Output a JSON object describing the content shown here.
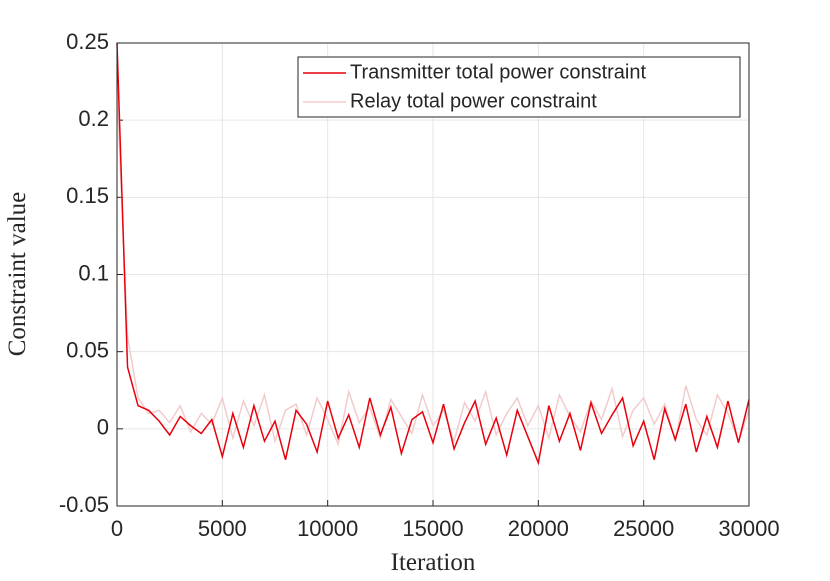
{
  "chart_data": {
    "type": "line",
    "xlabel": "Iteration",
    "ylabel": "Constraint value",
    "x": [
      0,
      500,
      1000,
      1500,
      2000,
      2500,
      3000,
      3500,
      4000,
      4500,
      5000,
      5500,
      6000,
      6500,
      7000,
      7500,
      8000,
      8500,
      9000,
      9500,
      10000,
      10500,
      11000,
      11500,
      12000,
      12500,
      13000,
      13500,
      14000,
      14500,
      15000,
      15500,
      16000,
      16500,
      17000,
      17500,
      18000,
      18500,
      19000,
      19500,
      20000,
      20500,
      21000,
      21500,
      22000,
      22500,
      23000,
      23500,
      24000,
      24500,
      25000,
      25500,
      26000,
      26500,
      27000,
      27500,
      28000,
      28500,
      29000,
      29500,
      30000
    ],
    "series": [
      {
        "name": "Transmitter total power constraint",
        "color": "#e8000b",
        "values": [
          0.25,
          0.04,
          0.015,
          0.012,
          0.005,
          -0.004,
          0.008,
          0.002,
          -0.003,
          0.006,
          -0.018,
          0.01,
          -0.012,
          0.015,
          -0.008,
          0.005,
          -0.02,
          0.012,
          0.003,
          -0.015,
          0.018,
          -0.006,
          0.009,
          -0.012,
          0.02,
          -0.004,
          0.014,
          -0.016,
          0.006,
          0.011,
          -0.009,
          0.016,
          -0.013,
          0.004,
          0.018,
          -0.01,
          0.007,
          -0.017,
          0.012,
          -0.005,
          -0.022,
          0.015,
          -0.008,
          0.01,
          -0.014,
          0.017,
          -0.003,
          0.009,
          0.02,
          -0.011,
          0.005,
          -0.02,
          0.013,
          -0.007,
          0.016,
          -0.015,
          0.008,
          -0.012,
          0.018,
          -0.009,
          0.019
        ]
      },
      {
        "name": "Relay total power constraint",
        "color": "#f2cccc",
        "values": [
          0.22,
          0.06,
          0.02,
          0.01,
          0.012,
          0.004,
          0.015,
          -0.002,
          0.01,
          0.003,
          0.02,
          -0.006,
          0.018,
          0.002,
          0.022,
          -0.008,
          0.012,
          0.016,
          -0.004,
          0.02,
          0.006,
          -0.01,
          0.024,
          0.004,
          0.014,
          -0.006,
          0.019,
          0.008,
          -0.003,
          0.022,
          0.002,
          0.012,
          -0.008,
          0.017,
          0.005,
          0.024,
          -0.004,
          0.01,
          0.02,
          0.002,
          0.015,
          -0.006,
          0.022,
          0.008,
          -0.002,
          0.018,
          0.006,
          0.026,
          -0.005,
          0.012,
          0.02,
          0.003,
          0.016,
          -0.008,
          0.028,
          0.006,
          -0.004,
          0.022,
          0.01,
          -0.008,
          0.012
        ]
      }
    ],
    "xlim": [
      0,
      30000
    ],
    "xticks": [
      0,
      5000,
      10000,
      15000,
      20000,
      25000,
      30000
    ],
    "ylim": [
      -0.05,
      0.25
    ],
    "yticks": [
      -0.05,
      0,
      0.05,
      0.1,
      0.15,
      0.2,
      0.25
    ],
    "grid": true,
    "legend": "top-right"
  }
}
